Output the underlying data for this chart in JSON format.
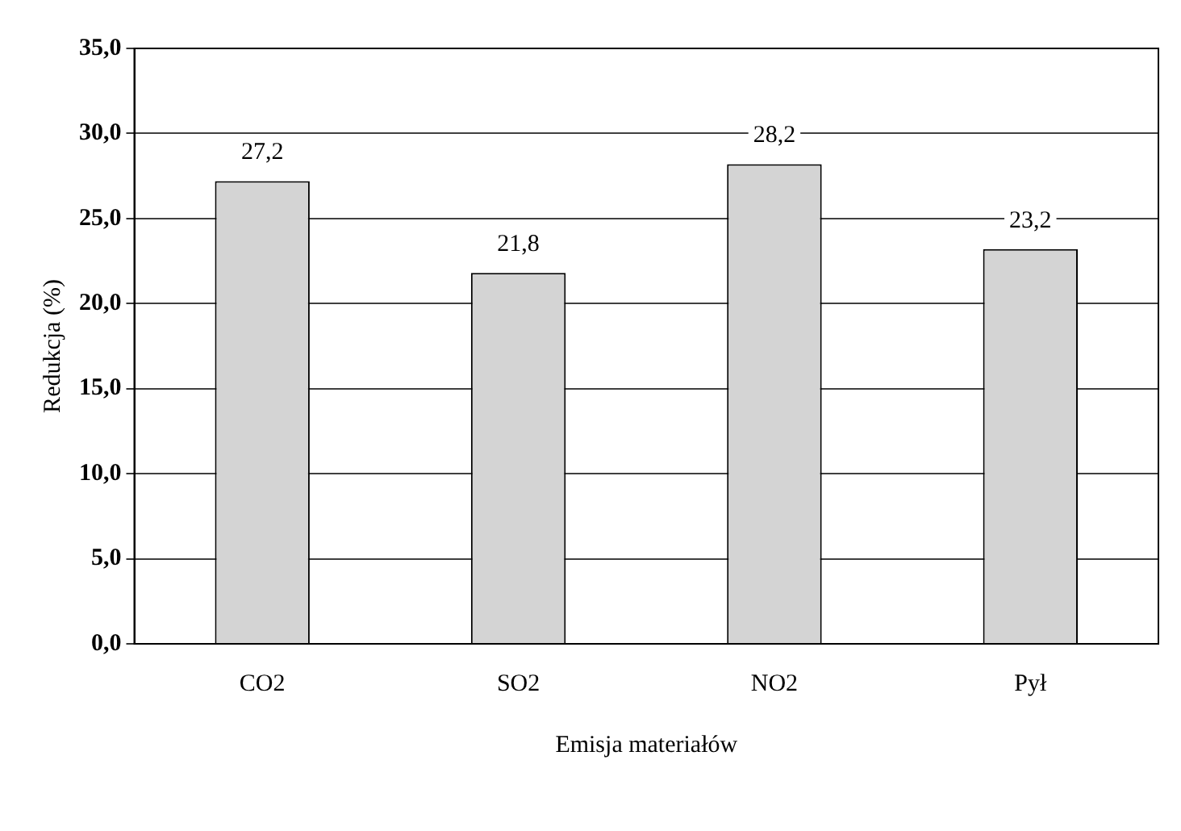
{
  "chart_data": {
    "type": "bar",
    "xlabel": "Emisja materiałów",
    "ylabel": "Redukcja (%)",
    "categories": [
      "CO2",
      "SO2",
      "NO2",
      "Pył"
    ],
    "values": [
      27.2,
      21.8,
      28.2,
      23.2
    ],
    "value_labels": [
      "27,2",
      "21,8",
      "28,2",
      "23,2"
    ],
    "color": "#d4d4d4",
    "ylim": [
      0,
      35
    ],
    "yticks": [
      {
        "value": 0,
        "label": "0,0"
      },
      {
        "value": 5,
        "label": "5,0"
      },
      {
        "value": 10,
        "label": "10,0"
      },
      {
        "value": 15,
        "label": "15,0"
      },
      {
        "value": 20,
        "label": "20,0"
      },
      {
        "value": 25,
        "label": "25,0"
      },
      {
        "value": 30,
        "label": "30,0"
      },
      {
        "value": 35,
        "label": "35,0"
      }
    ],
    "grid": "y",
    "legend": false
  }
}
